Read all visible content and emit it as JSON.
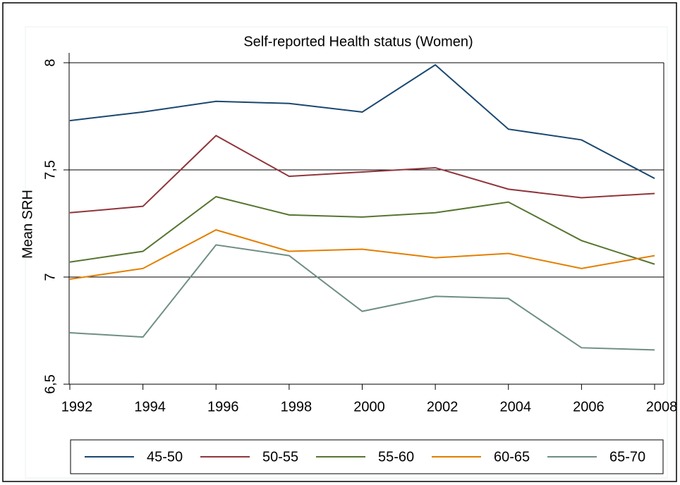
{
  "chart_data": {
    "type": "line",
    "title": "Self-reported Health status (Women)",
    "y_label": "Mean SRH",
    "x": [
      1992,
      1994,
      1996,
      1998,
      2000,
      2002,
      2004,
      2006,
      2008
    ],
    "xlim": [
      1992,
      2008
    ],
    "xticks": [
      1992,
      1994,
      1996,
      1998,
      2000,
      2002,
      2004,
      2006,
      2008
    ],
    "ylim": [
      6.5,
      8
    ],
    "yticks": [
      {
        "value": 6.5,
        "label": "6,5"
      },
      7,
      {
        "value": 7.5,
        "label": "7,5"
      },
      8
    ],
    "grid": true,
    "legend": "bottom",
    "series": [
      {
        "name": "45-50",
        "color": "#1a476f",
        "values": [
          7.73,
          7.77,
          7.82,
          7.81,
          7.77,
          7.99,
          7.69,
          7.64,
          7.46
        ]
      },
      {
        "name": "50-55",
        "color": "#90353b",
        "values": [
          7.3,
          7.33,
          7.66,
          7.47,
          7.49,
          7.51,
          7.41,
          7.37,
          7.39
        ]
      },
      {
        "name": "55-60",
        "color": "#55752f",
        "values": [
          7.07,
          7.12,
          7.375,
          7.29,
          7.28,
          7.3,
          7.35,
          7.17,
          7.06
        ]
      },
      {
        "name": "60-65",
        "color": "#e37e00",
        "values": [
          6.99,
          7.04,
          7.22,
          7.12,
          7.13,
          7.09,
          7.11,
          7.04,
          7.1
        ]
      },
      {
        "name": "65-70",
        "color": "#6e8e84",
        "values": [
          6.74,
          6.72,
          7.15,
          7.1,
          6.84,
          6.91,
          6.9,
          6.67,
          6.66
        ]
      }
    ]
  }
}
